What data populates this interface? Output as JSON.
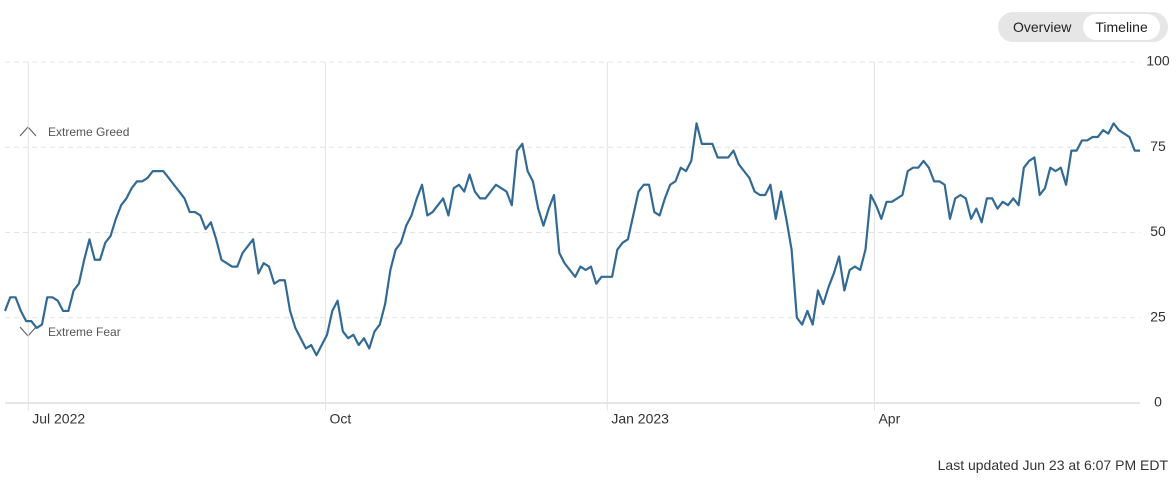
{
  "toggle": [
    "Overview",
    "Timeline"
  ],
  "footer": "Last updated Jun 23 at 6:07 PM EDT",
  "chart_data": {
    "type": "line",
    "annotations": [
      "Extreme Greed",
      "Extreme Fear"
    ],
    "series": [
      {
        "color": "#336a94",
        "values": [
          27,
          31,
          31,
          27,
          24,
          24,
          22,
          23,
          31,
          31,
          30,
          27,
          27,
          33,
          35,
          42,
          48,
          42,
          42,
          47,
          49,
          54,
          58,
          60,
          63,
          65,
          65,
          66,
          68,
          68,
          68,
          66,
          64,
          62,
          60,
          56,
          56,
          55,
          51,
          53,
          48,
          42,
          41,
          40,
          40,
          44,
          46,
          48,
          38,
          41,
          40,
          35,
          36,
          36,
          27,
          22,
          19,
          16,
          17,
          14,
          17,
          20,
          27,
          30,
          21,
          19,
          20,
          17,
          19,
          16,
          21,
          23,
          29,
          39,
          45,
          47,
          52,
          55,
          60,
          64,
          55,
          56,
          58,
          60,
          55,
          63,
          64,
          62,
          67,
          62,
          60,
          60,
          62,
          64,
          63,
          62,
          58,
          74,
          76,
          68,
          65,
          57,
          52,
          57,
          61,
          44,
          41,
          39,
          37,
          40,
          39,
          40,
          35,
          37,
          37,
          37,
          45,
          47,
          48,
          55,
          62,
          64,
          64,
          56,
          55,
          60,
          64,
          65,
          69,
          68,
          71,
          82,
          76,
          76,
          76,
          72,
          72,
          72,
          74,
          70,
          68,
          66,
          62,
          61,
          61,
          64,
          54,
          62,
          54,
          45,
          25,
          23,
          27,
          23,
          33,
          29,
          34,
          38,
          43,
          33,
          39,
          40,
          39,
          45,
          61,
          58,
          54,
          59,
          59,
          60,
          61,
          68,
          69,
          69,
          71,
          69,
          65,
          65,
          64,
          54,
          60,
          61,
          60,
          54,
          57,
          53,
          60,
          60,
          57,
          59,
          58,
          60,
          58,
          69,
          71,
          72,
          61,
          63,
          69,
          68,
          69,
          64,
          74,
          74,
          77,
          77,
          78,
          78,
          80,
          79,
          82,
          80,
          79,
          78,
          74,
          74
        ]
      }
    ],
    "xlim": [
      0,
      215
    ],
    "xticks": [
      {
        "value": 4.4,
        "label": "Jul 2022"
      },
      {
        "value": 60.7,
        "label": "Oct"
      },
      {
        "value": 114.1,
        "label": "Jan 2023"
      },
      {
        "value": 164.7,
        "label": "Apr"
      }
    ],
    "ylim": [
      0,
      100
    ],
    "yticks": [
      0,
      25,
      50,
      75,
      100
    ],
    "grid": true
  }
}
